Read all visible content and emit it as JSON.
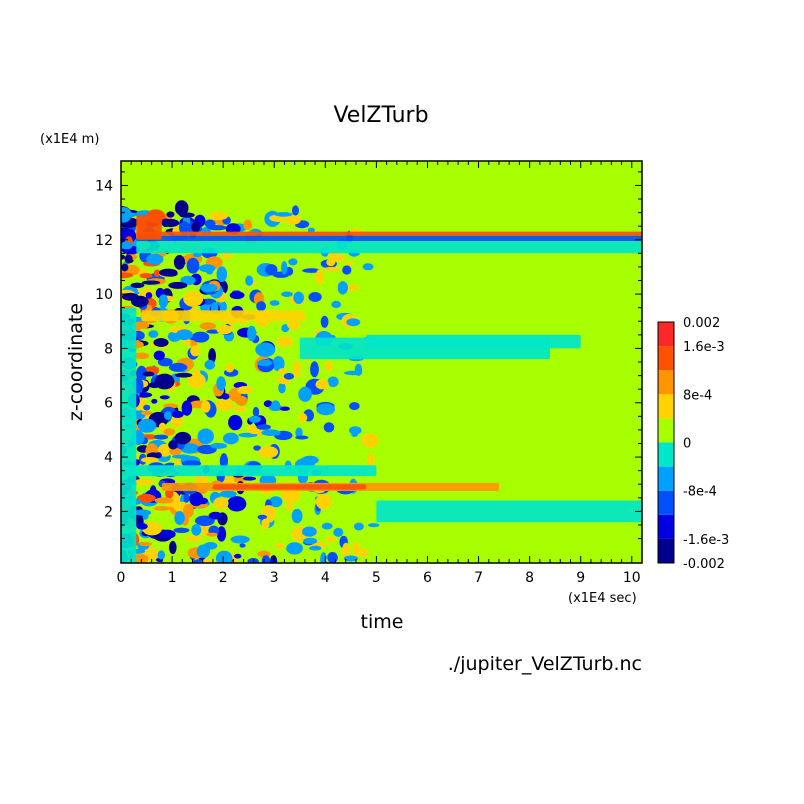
{
  "chart_data": {
    "type": "heatmap",
    "title": "VelZTurb",
    "xlabel": "time",
    "ylabel": "z-coordinate",
    "x_unit": "(x1E4 sec)",
    "y_unit": "(x1E4 m)",
    "footer": "./jupiter_VelZTurb.nc",
    "xlim": [
      0,
      10.2
    ],
    "ylim": [
      0.1,
      14.9
    ],
    "x_ticks": [
      0,
      1,
      2,
      3,
      4,
      5,
      6,
      7,
      8,
      9,
      10
    ],
    "x_tick_labels": [
      "0",
      "1",
      "2",
      "3",
      "4",
      "5",
      "6",
      "7",
      "8",
      "9",
      "10"
    ],
    "y_ticks": [
      2,
      4,
      6,
      8,
      10,
      12,
      14
    ],
    "y_tick_labels": [
      "2",
      "4",
      "6",
      "8",
      "10",
      "12",
      "14"
    ],
    "colorbar": {
      "min": -0.002,
      "max": 0.002,
      "levels": [
        -0.002,
        -0.0016,
        -0.0012,
        -0.0008,
        -0.0004,
        0,
        0.0004,
        0.0008,
        0.0012,
        0.0016,
        0.002
      ],
      "colors": [
        "#00008c",
        "#0000e0",
        "#0050ff",
        "#00a0ff",
        "#00e6c8",
        "#a8ff00",
        "#ffd200",
        "#ff9600",
        "#ff5000",
        "#ff2828"
      ],
      "labels": [
        {
          "value": 0.002,
          "text": "0.002"
        },
        {
          "value": 0.0016,
          "text": "1.6e-3"
        },
        {
          "value": 0.0008,
          "text": "8e-4"
        },
        {
          "value": 0,
          "text": "0"
        },
        {
          "value": -0.0008,
          "text": "-8e-4"
        },
        {
          "value": -0.0016,
          "text": "-1.6e-3"
        },
        {
          "value": -0.002,
          "text": "-0.002"
        }
      ]
    },
    "background_value": 0,
    "features": [
      {
        "kind": "band",
        "x": [
          0.3,
          10.2
        ],
        "y": [
          12.15,
          12.3
        ],
        "value": 0.0014
      },
      {
        "kind": "band",
        "x": [
          0.3,
          10.2
        ],
        "y": [
          11.95,
          12.15
        ],
        "value": -0.0009
      },
      {
        "kind": "band",
        "x": [
          0.3,
          10.2
        ],
        "y": [
          11.5,
          11.95
        ],
        "value": -0.0004
      },
      {
        "kind": "band",
        "x": [
          0.8,
          7.4
        ],
        "y": [
          2.75,
          3.05
        ],
        "value": 0.0009
      },
      {
        "kind": "band",
        "x": [
          1.8,
          4.8
        ],
        "y": [
          2.8,
          3.0
        ],
        "value": 0.0015
      },
      {
        "kind": "band",
        "x": [
          0.4,
          3.6
        ],
        "y": [
          9.0,
          9.4
        ],
        "value": 0.0007
      },
      {
        "kind": "band",
        "x": [
          0.3,
          0.8
        ],
        "y": [
          12.0,
          12.9
        ],
        "value": 0.0015
      },
      {
        "kind": "band",
        "x": [
          3.5,
          8.4
        ],
        "y": [
          7.6,
          8.4
        ],
        "value": -0.0004
      },
      {
        "kind": "band",
        "x": [
          0.0,
          5.0
        ],
        "y": [
          3.3,
          3.7
        ],
        "value": -0.0004
      },
      {
        "kind": "band",
        "x": [
          4.8,
          9.0
        ],
        "y": [
          8.0,
          8.5
        ],
        "value": -0.0004
      },
      {
        "kind": "band",
        "x": [
          5.0,
          10.2
        ],
        "y": [
          1.6,
          2.4
        ],
        "value": -0.0004
      },
      {
        "kind": "band",
        "x": [
          0.0,
          0.3
        ],
        "y": [
          0.1,
          9.5
        ],
        "value": -0.0004
      }
    ],
    "turbulent_region": {
      "x": [
        0.0,
        5.0
      ],
      "y": [
        0.1,
        13.2
      ],
      "min": -0.0016,
      "max": 0.0016
    }
  }
}
